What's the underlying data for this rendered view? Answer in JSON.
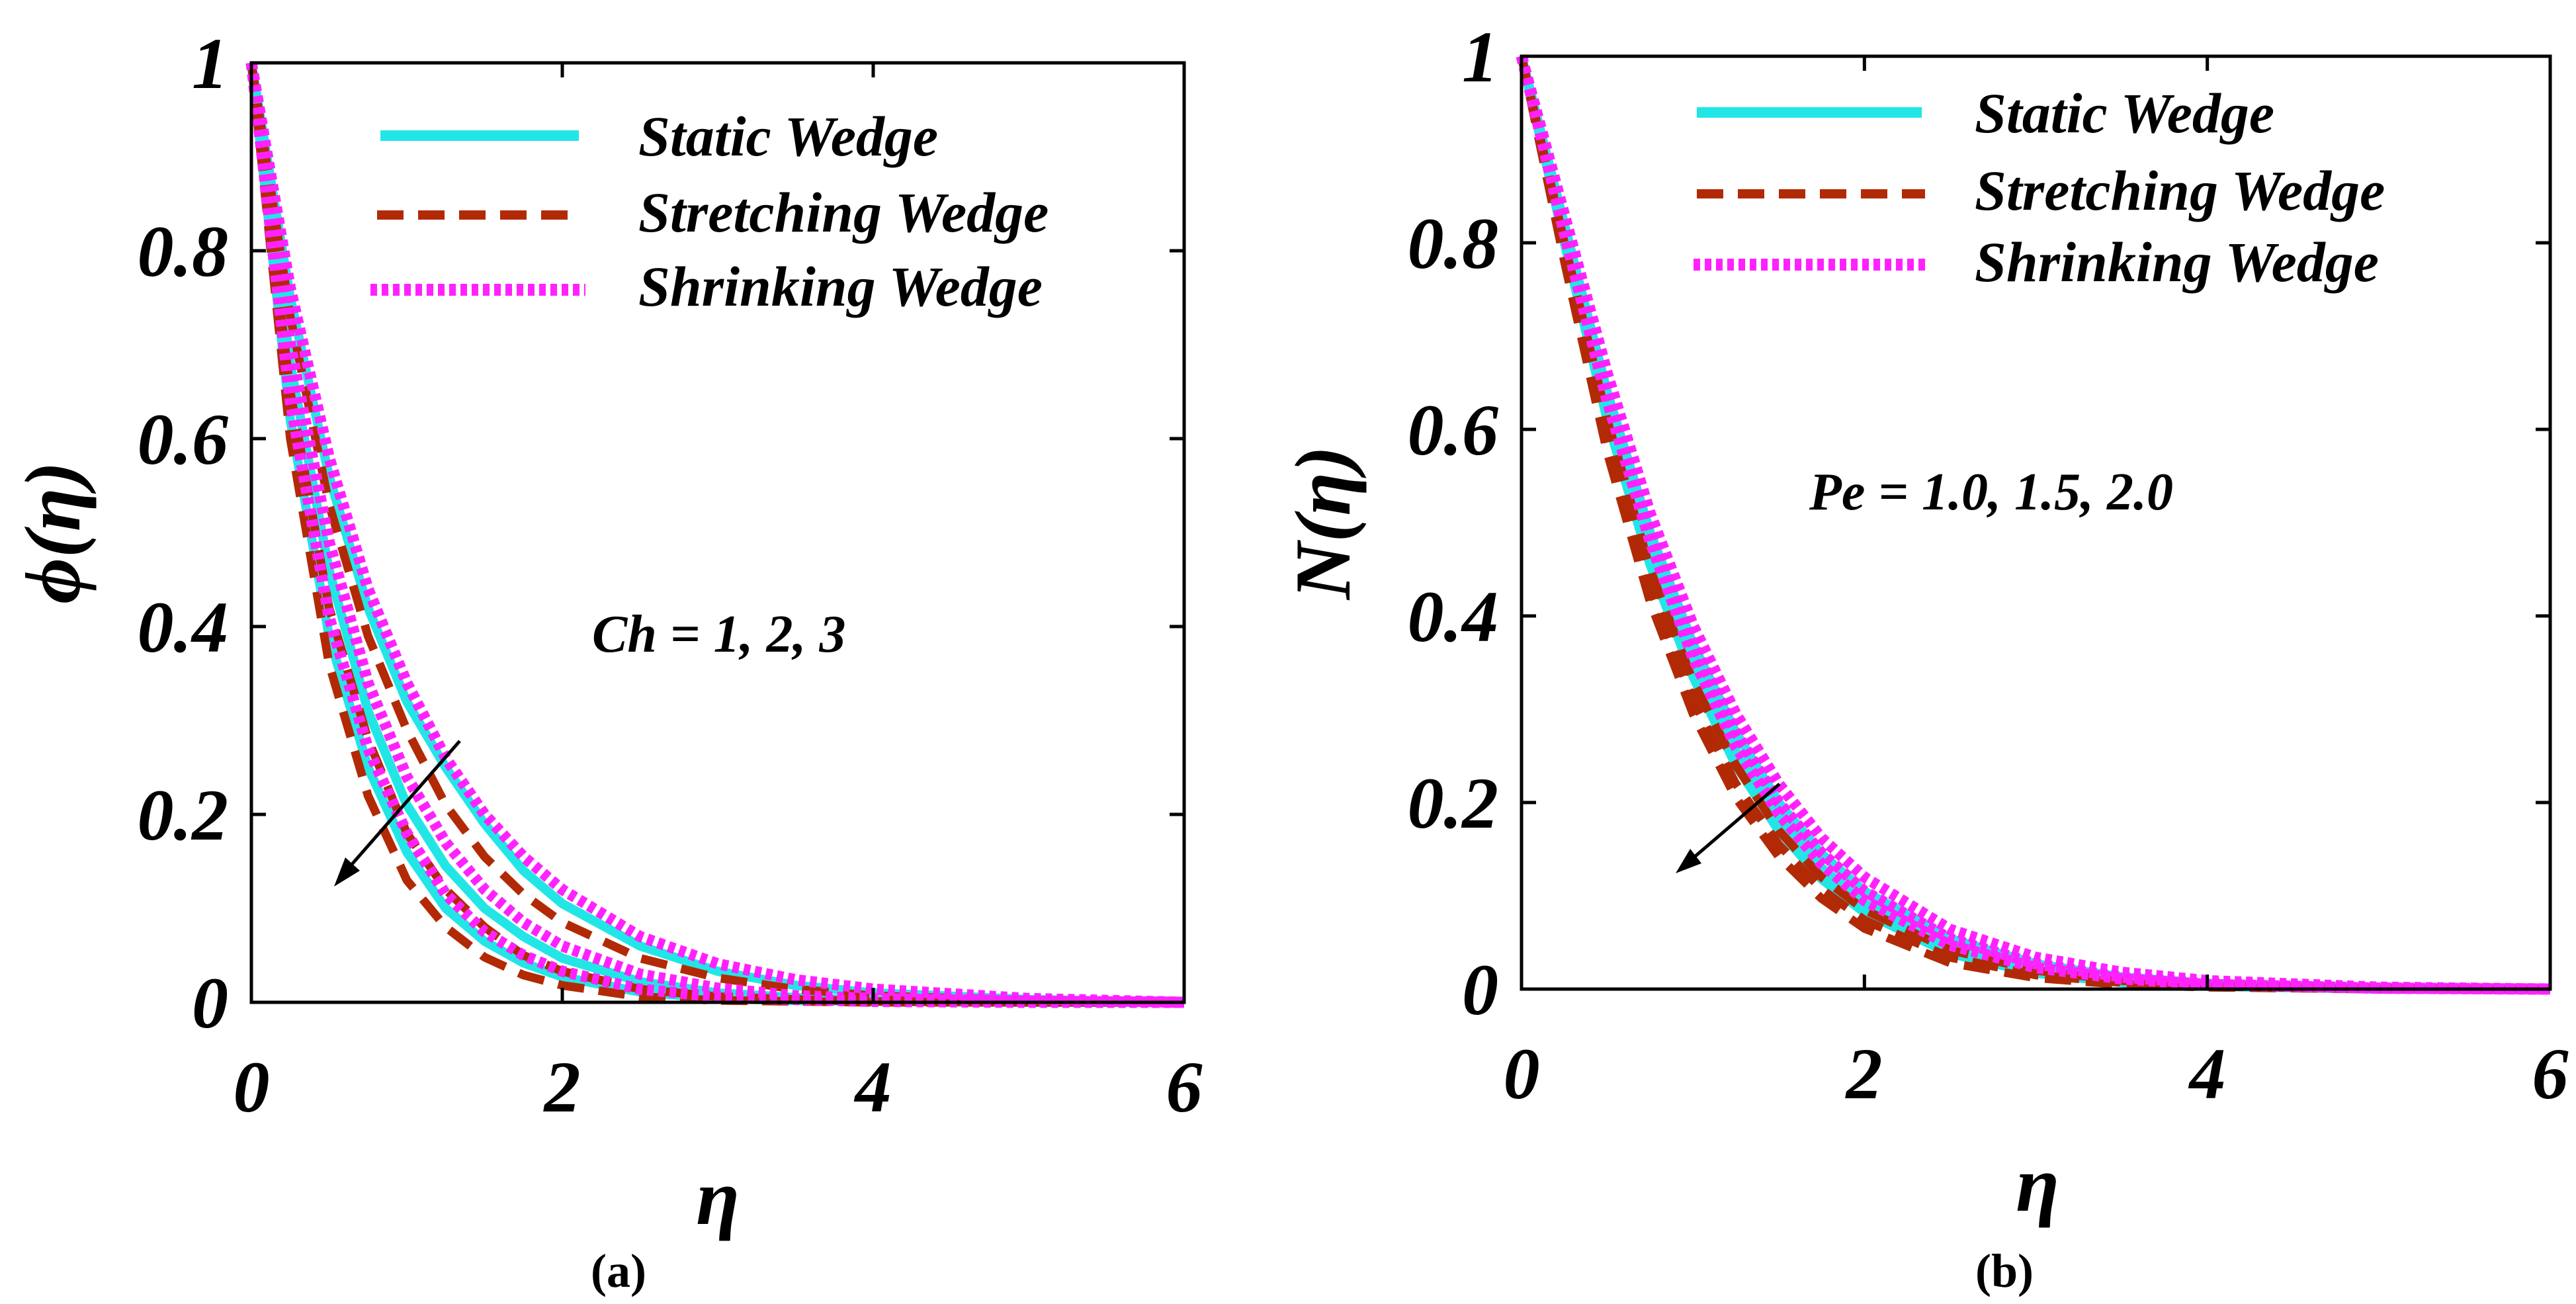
{
  "chart_data": [
    {
      "type": "line",
      "panel_label": "a",
      "xlabel": "η",
      "ylabel": "ϕ(η)",
      "xlim": [
        0,
        6
      ],
      "ylim": [
        0,
        1
      ],
      "xticks": [
        "0",
        "2",
        "4",
        "6"
      ],
      "yticks": [
        "0",
        "0.2",
        "0.4",
        "0.6",
        "0.8",
        "1"
      ],
      "annotation": "Ch = 1, 2, 3",
      "legend": [
        {
          "name": "Static Wedge",
          "color": "#22e6e6",
          "style": "solid"
        },
        {
          "name": "Stretching Wedge",
          "color": "#b22a05",
          "style": "dashed"
        },
        {
          "name": "Shrinking Wedge",
          "color": "#ff22ff",
          "style": "dotted"
        }
      ],
      "x": [
        0,
        0.25,
        0.5,
        0.75,
        1,
        1.25,
        1.5,
        1.75,
        2,
        2.5,
        3,
        3.5,
        4,
        5,
        6
      ],
      "series": [
        {
          "name": "Static Wedge, Ch = 1",
          "group": "Static Wedge",
          "values": [
            1,
            0.75,
            0.56,
            0.42,
            0.32,
            0.25,
            0.19,
            0.14,
            0.105,
            0.06,
            0.033,
            0.018,
            0.01,
            0.003,
            0
          ]
        },
        {
          "name": "Static Wedge, Ch = 2",
          "group": "Static Wedge",
          "values": [
            1,
            0.68,
            0.46,
            0.31,
            0.21,
            0.145,
            0.1,
            0.07,
            0.047,
            0.022,
            0.01,
            0.005,
            0.002,
            0.001,
            0
          ]
        },
        {
          "name": "Static Wedge, Ch = 3",
          "group": "Static Wedge",
          "values": [
            1,
            0.62,
            0.39,
            0.25,
            0.16,
            0.1,
            0.065,
            0.042,
            0.027,
            0.011,
            0.004,
            0.002,
            0.001,
            0,
            0
          ]
        },
        {
          "name": "Stretching Wedge, Ch = 1",
          "group": "Stretching Wedge",
          "values": [
            1,
            0.73,
            0.53,
            0.39,
            0.29,
            0.21,
            0.155,
            0.115,
            0.085,
            0.047,
            0.026,
            0.014,
            0.007,
            0.002,
            0
          ]
        },
        {
          "name": "Stretching Wedge, Ch = 2",
          "group": "Stretching Wedge",
          "values": [
            1,
            0.65,
            0.42,
            0.28,
            0.18,
            0.12,
            0.08,
            0.05,
            0.033,
            0.014,
            0.006,
            0.003,
            0.001,
            0,
            0
          ]
        },
        {
          "name": "Stretching Wedge, Ch = 3",
          "group": "Stretching Wedge",
          "values": [
            1,
            0.6,
            0.36,
            0.22,
            0.13,
            0.08,
            0.048,
            0.029,
            0.018,
            0.006,
            0.002,
            0.001,
            0,
            0,
            0
          ]
        },
        {
          "name": "Shrinking Wedge, Ch = 1",
          "group": "Shrinking Wedge",
          "values": [
            1,
            0.76,
            0.58,
            0.44,
            0.34,
            0.26,
            0.2,
            0.155,
            0.12,
            0.07,
            0.041,
            0.024,
            0.014,
            0.004,
            0
          ]
        },
        {
          "name": "Shrinking Wedge, Ch = 2",
          "group": "Shrinking Wedge",
          "values": [
            1,
            0.7,
            0.49,
            0.34,
            0.24,
            0.17,
            0.12,
            0.085,
            0.06,
            0.03,
            0.015,
            0.007,
            0.004,
            0.001,
            0
          ]
        },
        {
          "name": "Shrinking Wedge, Ch = 3",
          "group": "Shrinking Wedge",
          "values": [
            1,
            0.64,
            0.41,
            0.27,
            0.18,
            0.115,
            0.075,
            0.05,
            0.033,
            0.014,
            0.006,
            0.003,
            0.001,
            0,
            0
          ]
        }
      ]
    },
    {
      "type": "line",
      "panel_label": "b",
      "xlabel": "η",
      "ylabel": "N(η)",
      "xlim": [
        0,
        6
      ],
      "ylim": [
        0,
        1
      ],
      "xticks": [
        "0",
        "2",
        "4",
        "6"
      ],
      "yticks": [
        "0",
        "0.2",
        "0.4",
        "0.6",
        "0.8",
        "1"
      ],
      "annotation": "Pe = 1.0, 1.5, 2.0",
      "legend": [
        {
          "name": "Static Wedge",
          "color": "#22e6e6",
          "style": "solid"
        },
        {
          "name": "Stretching Wedge",
          "color": "#b22a05",
          "style": "dashed"
        },
        {
          "name": "Shrinking Wedge",
          "color": "#ff22ff",
          "style": "dotted"
        }
      ],
      "x": [
        0,
        0.25,
        0.5,
        0.75,
        1,
        1.25,
        1.5,
        1.75,
        2,
        2.5,
        3,
        3.5,
        4,
        5,
        6
      ],
      "series": [
        {
          "name": "Static Wedge, Pe = 1.0",
          "group": "Static Wedge",
          "values": [
            1,
            0.82,
            0.64,
            0.49,
            0.37,
            0.275,
            0.2,
            0.145,
            0.105,
            0.054,
            0.027,
            0.013,
            0.006,
            0.001,
            0
          ]
        },
        {
          "name": "Static Wedge, Pe = 1.5",
          "group": "Static Wedge",
          "values": [
            1,
            0.81,
            0.62,
            0.47,
            0.35,
            0.255,
            0.185,
            0.13,
            0.092,
            0.045,
            0.021,
            0.01,
            0.004,
            0.001,
            0
          ]
        },
        {
          "name": "Static Wedge, Pe = 2.0",
          "group": "Static Wedge",
          "values": [
            1,
            0.8,
            0.61,
            0.455,
            0.335,
            0.24,
            0.17,
            0.118,
            0.082,
            0.038,
            0.017,
            0.007,
            0.003,
            0,
            0
          ]
        },
        {
          "name": "Stretching Wedge, Pe = 1.0",
          "group": "Stretching Wedge",
          "values": [
            1,
            0.8,
            0.61,
            0.45,
            0.33,
            0.24,
            0.17,
            0.12,
            0.085,
            0.042,
            0.02,
            0.009,
            0.004,
            0.001,
            0
          ]
        },
        {
          "name": "Stretching Wedge, Pe = 1.5",
          "group": "Stretching Wedge",
          "values": [
            1,
            0.79,
            0.59,
            0.43,
            0.31,
            0.22,
            0.155,
            0.107,
            0.074,
            0.034,
            0.015,
            0.007,
            0.003,
            0,
            0
          ]
        },
        {
          "name": "Stretching Wedge, Pe = 2.0",
          "group": "Stretching Wedge",
          "values": [
            1,
            0.78,
            0.575,
            0.415,
            0.295,
            0.205,
            0.142,
            0.097,
            0.065,
            0.028,
            0.012,
            0.005,
            0.002,
            0,
            0
          ]
        },
        {
          "name": "Shrinking Wedge, Pe = 1.0",
          "group": "Shrinking Wedge",
          "values": [
            1,
            0.83,
            0.66,
            0.51,
            0.39,
            0.295,
            0.22,
            0.162,
            0.12,
            0.064,
            0.034,
            0.018,
            0.009,
            0.002,
            0
          ]
        },
        {
          "name": "Shrinking Wedge, Pe = 1.5",
          "group": "Shrinking Wedge",
          "values": [
            1,
            0.82,
            0.645,
            0.495,
            0.37,
            0.275,
            0.2,
            0.146,
            0.105,
            0.054,
            0.027,
            0.013,
            0.006,
            0.001,
            0
          ]
        },
        {
          "name": "Shrinking Wedge, Pe = 2.0",
          "group": "Shrinking Wedge",
          "values": [
            1,
            0.81,
            0.63,
            0.48,
            0.355,
            0.26,
            0.188,
            0.134,
            0.095,
            0.047,
            0.023,
            0.011,
            0.005,
            0.001,
            0
          ]
        }
      ]
    }
  ],
  "captions": {
    "a": "(a)",
    "b": "(b)"
  },
  "styles": {
    "Static Wedge": {
      "color": "#22e6e6",
      "dash": "none"
    },
    "Stretching Wedge": {
      "color": "#b22a05",
      "dash": "dashed"
    },
    "Shrinking Wedge": {
      "color": "#ff22ff",
      "dash": "dotted"
    }
  }
}
